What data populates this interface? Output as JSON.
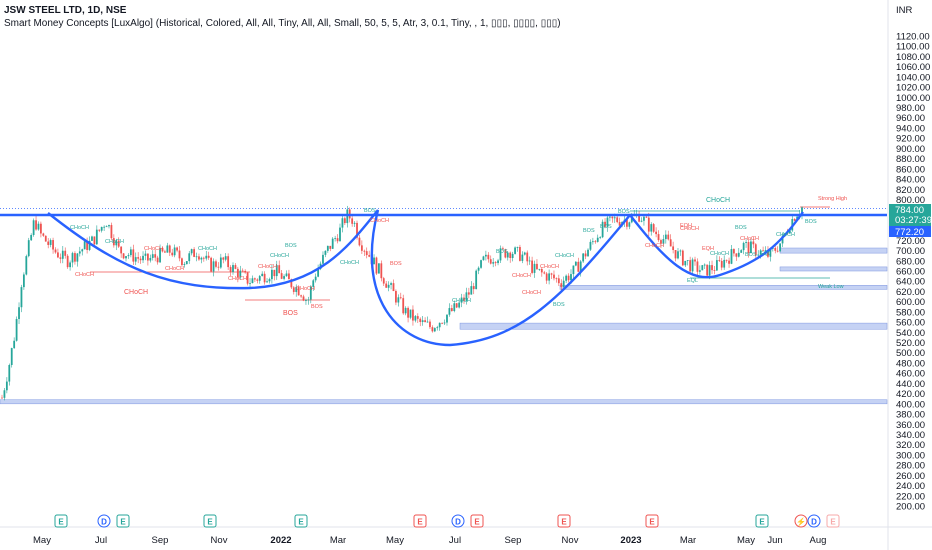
{
  "header": {
    "symbol_line": "JSW STEEL LTD, 1D, NSE",
    "indicator_line": "Smart Money Concepts [LuxAlgo] (Historical, Colored, All, All, Tiny, All, All, Small, 50, 5, 5, Atr, 3, 0.1, Tiny, , 1, ▯▯▯, ▯▯▯▯, ▯▯▯)"
  },
  "currency": "INR",
  "price_labels": {
    "last": "784.00",
    "countdown": "03:27:39",
    "prev": "772.20"
  },
  "colors": {
    "up": "#26a69a",
    "down": "#ef5350",
    "blue": "#2962ff",
    "ob_fill": "#b2c3f0",
    "text": "#131722"
  },
  "chart_data": {
    "type": "candlestick",
    "ylim": [
      180,
      1150
    ],
    "y_ticks": [
      200,
      220,
      240,
      260,
      280,
      300,
      320,
      340,
      360,
      380,
      400,
      420,
      440,
      460,
      480,
      500,
      520,
      540,
      560,
      580,
      600,
      620,
      640,
      660,
      680,
      700,
      720,
      740,
      760,
      780,
      800,
      820,
      840,
      860,
      880,
      900,
      920,
      940,
      960,
      980,
      1000,
      1020,
      1040,
      1060,
      1080,
      1100,
      1120
    ],
    "y_tick_labels": [
      "200.00",
      "220.00",
      "240.00",
      "260.00",
      "280.00",
      "300.00",
      "320.00",
      "340.00",
      "360.00",
      "380.00",
      "400.00",
      "420.00",
      "440.00",
      "460.00",
      "480.00",
      "500.00",
      "520.00",
      "540.00",
      "560.00",
      "580.00",
      "600.00",
      "620.00",
      "640.00",
      "660.00",
      "680.00",
      "700.00",
      "720.00",
      "740.00",
      "760.00",
      "780.00",
      "800.00",
      "820.00",
      "840.00",
      "860.00",
      "880.00",
      "900.00",
      "920.00",
      "940.00",
      "960.00",
      "980.00",
      "1000.00",
      "1020.00",
      "1040.00",
      "1060.00",
      "1080.00",
      "1100.00",
      "1120.00"
    ],
    "x_labels": [
      "May",
      "Jul",
      "Sep",
      "Nov",
      "2022",
      "Mar",
      "May",
      "Jul",
      "Sep",
      "Nov",
      "2023",
      "Mar",
      "May",
      "Jun",
      "Aug"
    ],
    "x_label_bold": [
      false,
      false,
      false,
      false,
      true,
      false,
      false,
      false,
      false,
      false,
      true,
      false,
      false,
      false,
      false
    ],
    "series": [
      {
        "name": "close path",
        "values": [
          [
            0,
            412
          ],
          [
            1,
            470
          ],
          [
            2,
            540
          ],
          [
            3,
            640
          ],
          [
            4,
            700
          ],
          [
            5,
            760
          ],
          [
            6,
            730
          ],
          [
            8,
            700
          ],
          [
            10,
            680
          ],
          [
            12,
            700
          ],
          [
            14,
            720
          ],
          [
            16,
            760
          ],
          [
            17,
            730
          ],
          [
            18,
            700
          ],
          [
            20,
            690
          ],
          [
            22,
            680
          ],
          [
            24,
            690
          ],
          [
            26,
            700
          ],
          [
            28,
            680
          ],
          [
            30,
            700
          ],
          [
            32,
            670
          ],
          [
            34,
            680
          ],
          [
            36,
            660
          ],
          [
            38,
            640
          ],
          [
            40,
            650
          ],
          [
            42,
            660
          ],
          [
            44,
            640
          ],
          [
            46,
            620
          ],
          [
            47,
            600
          ],
          [
            48,
            650
          ],
          [
            50,
            700
          ],
          [
            52,
            740
          ],
          [
            53,
            770
          ],
          [
            54,
            760
          ],
          [
            55,
            720
          ],
          [
            56,
            700
          ],
          [
            58,
            660
          ],
          [
            60,
            620
          ],
          [
            62,
            580
          ],
          [
            64,
            560
          ],
          [
            66,
            550
          ],
          [
            68,
            570
          ],
          [
            70,
            590
          ],
          [
            72,
            620
          ],
          [
            74,
            680
          ],
          [
            76,
            690
          ],
          [
            78,
            700
          ],
          [
            80,
            690
          ],
          [
            82,
            660
          ],
          [
            84,
            650
          ],
          [
            86,
            640
          ],
          [
            88,
            660
          ],
          [
            90,
            700
          ],
          [
            92,
            740
          ],
          [
            94,
            760
          ],
          [
            96,
            760
          ],
          [
            98,
            770
          ],
          [
            100,
            740
          ],
          [
            102,
            720
          ],
          [
            104,
            690
          ],
          [
            106,
            670
          ],
          [
            108,
            660
          ],
          [
            110,
            670
          ],
          [
            112,
            690
          ],
          [
            114,
            710
          ],
          [
            116,
            700
          ],
          [
            118,
            690
          ],
          [
            120,
            720
          ],
          [
            121,
            750
          ],
          [
            122,
            772
          ],
          [
            123,
            784
          ]
        ]
      }
    ],
    "annotations": {
      "choch": [
        "CHoCH",
        "CHoCH",
        "CHoCH",
        "CHoCH",
        "CHoCH",
        "CHoCH",
        "CHoCH",
        "CHoCH",
        "CHoCH",
        "CHoCH",
        "CHoCH",
        "CHoCH",
        "CHoCH",
        "CHoCH",
        "CHoCH",
        "CHoCH",
        "CHoCH",
        "CHoCH",
        "CHoCH",
        "CHoCH",
        "CHoCH",
        "CHoCH"
      ],
      "bos": [
        "BOS",
        "BOS",
        "BOS",
        "BOS",
        "BOS",
        "BOS",
        "BOS",
        "BOS",
        "BOS",
        "BOS",
        "BOS",
        "BOS"
      ],
      "other": [
        "EQH",
        "EQH",
        "EQL",
        "EQL",
        "Strong High",
        "Weak Low"
      ],
      "big_choch": "CHoCH",
      "big_bos": "BOS",
      "top_choch": "CHoCH"
    },
    "grid": false,
    "legend": "none"
  },
  "events": [
    "E",
    "D",
    "E",
    "E",
    "E",
    "E",
    "D",
    "E",
    "E",
    "E",
    "E",
    "⚡",
    "D",
    "E"
  ]
}
